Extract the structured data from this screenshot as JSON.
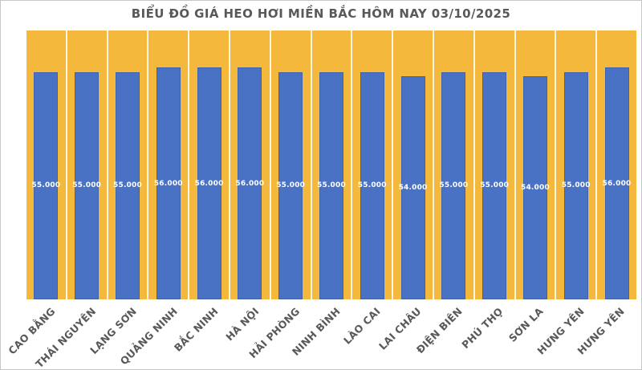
{
  "chart_data": {
    "type": "bar",
    "title": "BIỂU ĐỒ GIÁ HEO HƠI MIỀN BẮC HÔM NAY 03/10/2025",
    "categories": [
      "CAO BẰNG",
      "THÁI NGUYÊN",
      "LẠNG SƠN",
      "QUẢNG NINH",
      "BẮC NINH",
      "HÀ NỘI",
      "HẢI PHÒNG",
      "NINH BÌNH",
      "LÀO CAI",
      "LAI CHÂU",
      "ĐIỆN BIÊN",
      "PHÚ THỌ",
      "SƠN LA",
      "HƯNG YÊN",
      "HƯNG YÊN"
    ],
    "values": [
      55000,
      55000,
      55000,
      56000,
      56000,
      56000,
      55000,
      55000,
      55000,
      54000,
      55000,
      55000,
      54000,
      55000,
      56000
    ],
    "value_labels": [
      "55.000",
      "55.000",
      "55.000",
      "56.000",
      "56.000",
      "56.000",
      "55.000",
      "55.000",
      "55.000",
      "54.000",
      "55.000",
      "55.000",
      "54.000",
      "55.000",
      "56.000"
    ],
    "xlabel": "",
    "ylabel": "",
    "ylim": [
      0,
      65000
    ],
    "grid": "vertical-white-separators",
    "legend": "none",
    "colors": {
      "bar": "#4A72C4",
      "plot_background": "#F3B83C",
      "page_background": "#FFFFFF",
      "title_text": "#595959",
      "axis_label_text": "#595959",
      "value_label_text": "#FFFFFF"
    }
  }
}
